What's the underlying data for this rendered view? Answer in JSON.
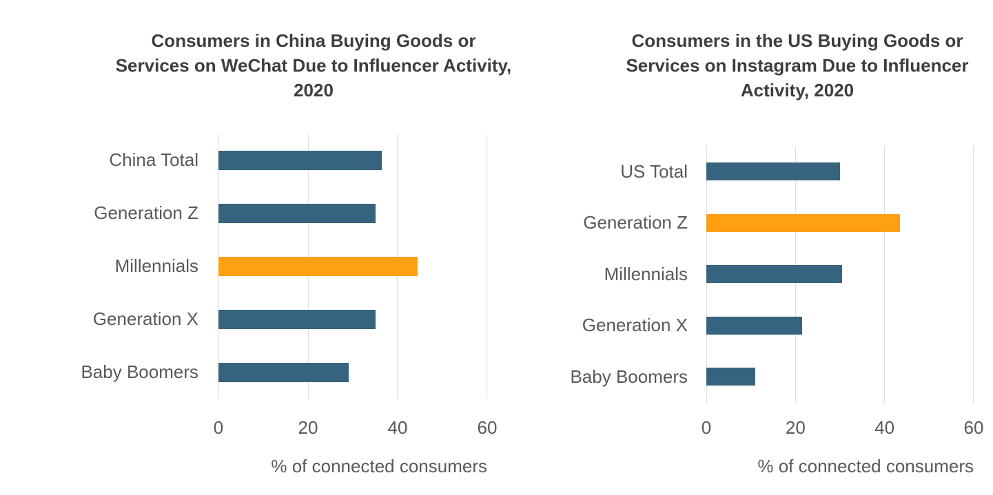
{
  "styles": {
    "background": "#FFFFFF",
    "title_color": "#3E3E3E",
    "label_color": "#595959",
    "gridline_color": "#DEDEDE",
    "bar_color": "#36637D",
    "highlight_color": "#FFA013"
  },
  "chart_data": [
    {
      "type": "bar",
      "orientation": "horizontal",
      "title": "Consumers in China Buying Goods or Services on WeChat Due to Influencer Activity, 2020",
      "categories": [
        "China Total",
        "Generation Z",
        "Millennials",
        "Generation X",
        "Baby Boomers"
      ],
      "values": [
        36.5,
        35,
        44.5,
        35,
        29
      ],
      "highlight_index": 2,
      "xlabel": "% of connected consumers",
      "xlim": [
        0,
        60
      ],
      "xticks": [
        0,
        20,
        40,
        60
      ],
      "grid": "vertical",
      "legend": "none",
      "bar_color": "#36637D",
      "highlight_color": "#FFA013"
    },
    {
      "type": "bar",
      "orientation": "horizontal",
      "title": "Consumers in the US Buying Goods or Services on Instagram Due to Influencer Activity, 2020",
      "categories": [
        "US Total",
        "Generation Z",
        "Millennials",
        "Generation X",
        "Baby Boomers"
      ],
      "values": [
        30,
        43.5,
        30.5,
        21.5,
        11
      ],
      "highlight_index": 1,
      "xlabel": "% of connected consumers",
      "xlim": [
        0,
        60
      ],
      "xticks": [
        0,
        20,
        40,
        60
      ],
      "grid": "vertical",
      "legend": "none",
      "bar_color": "#36637D",
      "highlight_color": "#FFA013"
    }
  ]
}
